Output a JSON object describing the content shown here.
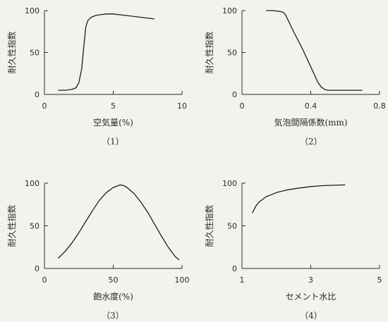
{
  "chart_data": [
    {
      "type": "line",
      "caption": "（1）",
      "xlabel": "空気量(%)",
      "ylabel": "耐久性指数",
      "xlim": [
        0,
        10
      ],
      "ylim": [
        0,
        100
      ],
      "xticks": [
        "0",
        "5",
        "10"
      ],
      "yticks": [
        "0",
        "50",
        "100"
      ],
      "x": [
        1.0,
        1.5,
        2.0,
        2.3,
        2.5,
        2.7,
        2.85,
        3.0,
        3.15,
        3.4,
        3.7,
        4.0,
        4.5,
        5.0,
        5.5,
        6.0,
        7.0,
        8.0
      ],
      "y": [
        5,
        5,
        6,
        8,
        14,
        30,
        55,
        80,
        88,
        92,
        94,
        95,
        96,
        96,
        95,
        94,
        92,
        90
      ]
    },
    {
      "type": "line",
      "caption": "（2）",
      "xlabel": "気泡間隔係数(mm)",
      "ylabel": "耐久性指数",
      "xlim": [
        0,
        0.8
      ],
      "ylim": [
        0,
        100
      ],
      "xticks": [
        "0",
        "0.4",
        "0.8"
      ],
      "yticks": [
        "0",
        "50",
        "100"
      ],
      "x": [
        0.14,
        0.18,
        0.22,
        0.24,
        0.25,
        0.26,
        0.3,
        0.35,
        0.4,
        0.44,
        0.46,
        0.48,
        0.5,
        0.55,
        0.6,
        0.7
      ],
      "y": [
        100,
        100,
        99,
        98,
        96,
        92,
        75,
        55,
        33,
        15,
        9,
        6,
        5,
        5,
        5,
        5
      ]
    },
    {
      "type": "line",
      "caption": "（3）",
      "xlabel": "飽水度(%)",
      "ylabel": "耐久性指数",
      "xlim": [
        0,
        100
      ],
      "ylim": [
        0,
        100
      ],
      "xticks": [
        "0",
        "50",
        "100"
      ],
      "yticks": [
        "0",
        "50",
        "100"
      ],
      "x": [
        10,
        15,
        20,
        25,
        30,
        35,
        40,
        45,
        50,
        55,
        58,
        60,
        65,
        70,
        75,
        80,
        85,
        90,
        95,
        98
      ],
      "y": [
        12,
        20,
        30,
        42,
        55,
        68,
        80,
        89,
        95,
        98,
        97,
        95,
        88,
        78,
        66,
        52,
        38,
        25,
        14,
        10
      ]
    },
    {
      "type": "line",
      "caption": "（4）",
      "xlabel": "セメント水比",
      "ylabel": "耐久性指数",
      "xlim": [
        1,
        5
      ],
      "ylim": [
        0,
        100
      ],
      "xticks": [
        "1",
        "3",
        "5"
      ],
      "yticks": [
        "0",
        "50",
        "100"
      ],
      "x": [
        1.3,
        1.4,
        1.5,
        1.7,
        2.0,
        2.3,
        2.6,
        3.0,
        3.3,
        3.6,
        4.0
      ],
      "y": [
        65,
        73,
        78,
        84,
        89,
        92,
        94,
        96,
        97,
        97.5,
        98
      ]
    }
  ]
}
